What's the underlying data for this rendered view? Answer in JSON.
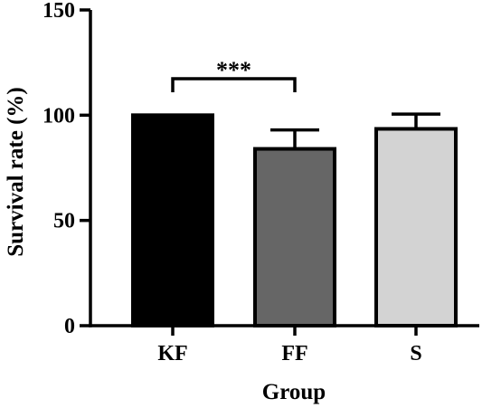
{
  "chart_data": {
    "type": "bar",
    "title": "",
    "xlabel": "Group",
    "ylabel": "Survival rate (%)",
    "categories": [
      "KF",
      "FF",
      "S"
    ],
    "values": [
      100,
      84,
      93.5
    ],
    "error_upper": [
      0,
      9,
      7
    ],
    "bar_colors": [
      "#000000",
      "#666666",
      "#d3d3d3"
    ],
    "edge_color": "#000000",
    "ylim": [
      0,
      150
    ],
    "yticks": [
      0,
      50,
      100,
      150
    ],
    "grid": false,
    "legend": "none",
    "annotations": [
      {
        "text": "***",
        "from": "KF",
        "to": "FF"
      }
    ]
  }
}
